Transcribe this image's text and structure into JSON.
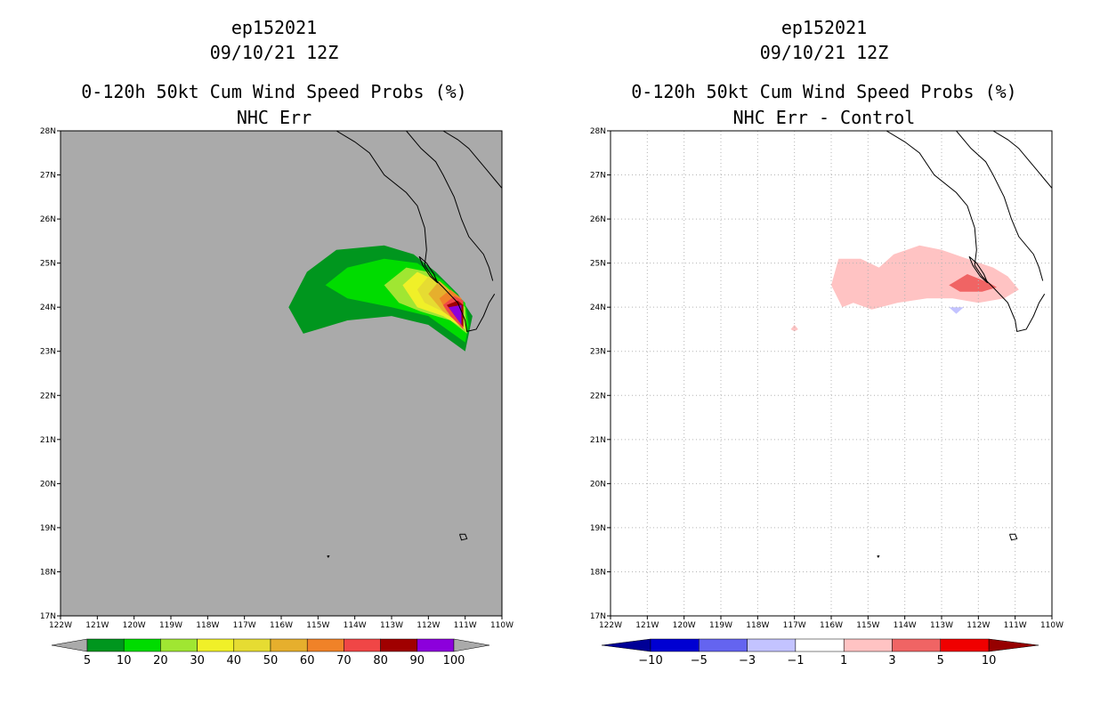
{
  "chart_data": [
    {
      "type": "heatmap",
      "storm_id": "ep152021",
      "datetime": "09/10/21 12Z",
      "title": "0-120h 50kt Cum Wind Speed Probs (%)",
      "subtitle": "NHC Err",
      "lon_range": [
        -122,
        -110
      ],
      "lat_range": [
        17,
        28
      ],
      "x_tick_labels": [
        "122W",
        "121W",
        "120W",
        "119W",
        "118W",
        "117W",
        "116W",
        "115W",
        "114W",
        "113W",
        "112W",
        "111W",
        "110W"
      ],
      "y_tick_labels": [
        "17N",
        "18N",
        "19N",
        "20N",
        "21N",
        "22N",
        "23N",
        "24N",
        "25N",
        "26N",
        "27N",
        "28N"
      ],
      "grid": false,
      "background_color": "#aaaaaa",
      "colorbar": {
        "labels": [
          "5",
          "10",
          "20",
          "30",
          "40",
          "50",
          "60",
          "70",
          "80",
          "90",
          "100"
        ],
        "colors": [
          "#00961e",
          "#00dc00",
          "#a0e632",
          "#f0f028",
          "#e6dc32",
          "#e6af2d",
          "#f08228",
          "#f04646",
          "#a00000",
          "#8c00dc"
        ],
        "end_color": "#aaaaaa"
      },
      "contours": [
        {
          "level": 5,
          "color": "#00961e",
          "points": [
            [
              -115.8,
              24.0
            ],
            [
              -115.3,
              24.8
            ],
            [
              -114.5,
              25.3
            ],
            [
              -113.2,
              25.4
            ],
            [
              -112.4,
              25.2
            ],
            [
              -111.8,
              24.8
            ],
            [
              -111.2,
              24.3
            ],
            [
              -110.8,
              23.8
            ],
            [
              -111.0,
              23.0
            ],
            [
              -112.0,
              23.6
            ],
            [
              -113.0,
              23.8
            ],
            [
              -114.2,
              23.7
            ],
            [
              -115.0,
              23.5
            ],
            [
              -115.4,
              23.4
            ],
            [
              -115.8,
              24.0
            ]
          ]
        },
        {
          "level": 10,
          "color": "#00dc00",
          "points": [
            [
              -114.8,
              24.5
            ],
            [
              -114.2,
              24.9
            ],
            [
              -113.2,
              25.1
            ],
            [
              -112.3,
              25.0
            ],
            [
              -111.6,
              24.6
            ],
            [
              -111.0,
              24.1
            ],
            [
              -110.9,
              23.6
            ],
            [
              -111.0,
              23.2
            ],
            [
              -112.0,
              23.8
            ],
            [
              -113.0,
              24.0
            ],
            [
              -114.2,
              24.2
            ],
            [
              -114.8,
              24.5
            ]
          ]
        },
        {
          "level": 20,
          "color": "#a0e632",
          "points": [
            [
              -113.2,
              24.5
            ],
            [
              -112.6,
              24.9
            ],
            [
              -112.0,
              24.8
            ],
            [
              -111.5,
              24.4
            ],
            [
              -111.0,
              24.0
            ],
            [
              -110.95,
              23.4
            ],
            [
              -111.4,
              23.7
            ],
            [
              -112.2,
              23.9
            ],
            [
              -112.8,
              24.1
            ],
            [
              -113.2,
              24.5
            ]
          ]
        },
        {
          "level": 30,
          "color": "#f0f028",
          "points": [
            [
              -112.7,
              24.5
            ],
            [
              -112.3,
              24.8
            ],
            [
              -111.8,
              24.6
            ],
            [
              -111.2,
              24.1
            ],
            [
              -111.0,
              23.5
            ],
            [
              -111.6,
              23.8
            ],
            [
              -112.3,
              24.0
            ],
            [
              -112.7,
              24.5
            ]
          ]
        },
        {
          "level": 40,
          "color": "#e6dc32",
          "points": [
            [
              -112.3,
              24.4
            ],
            [
              -112.0,
              24.7
            ],
            [
              -111.6,
              24.5
            ],
            [
              -111.1,
              24.1
            ],
            [
              -111.05,
              23.6
            ],
            [
              -111.6,
              23.9
            ],
            [
              -112.1,
              24.1
            ],
            [
              -112.3,
              24.4
            ]
          ]
        },
        {
          "level": 50,
          "color": "#e6af2d",
          "points": [
            [
              -112.0,
              24.3
            ],
            [
              -111.7,
              24.6
            ],
            [
              -111.3,
              24.3
            ],
            [
              -111.1,
              24.0
            ],
            [
              -111.1,
              23.6
            ],
            [
              -111.6,
              23.9
            ],
            [
              -112.0,
              24.3
            ]
          ]
        },
        {
          "level": 60,
          "color": "#f08228",
          "points": [
            [
              -111.7,
              24.2
            ],
            [
              -111.4,
              24.4
            ],
            [
              -111.1,
              24.2
            ],
            [
              -111.1,
              23.7
            ],
            [
              -111.5,
              23.9
            ],
            [
              -111.7,
              24.2
            ]
          ]
        },
        {
          "level": 70,
          "color": "#f04646",
          "points": [
            [
              -111.6,
              24.05
            ],
            [
              -111.3,
              24.25
            ],
            [
              -111.05,
              24.15
            ],
            [
              -111.05,
              23.5
            ],
            [
              -111.4,
              23.8
            ],
            [
              -111.6,
              24.05
            ]
          ]
        },
        {
          "level": 80,
          "color": "#a00000",
          "points": [
            [
              -111.5,
              24.05
            ],
            [
              -111.2,
              24.15
            ],
            [
              -111.05,
              24.05
            ],
            [
              -111.05,
              23.55
            ],
            [
              -111.5,
              24.05
            ]
          ]
        },
        {
          "level": 90,
          "color": "#8c00dc",
          "points": [
            [
              -111.45,
              24.0
            ],
            [
              -111.1,
              24.05
            ],
            [
              -111.1,
              23.6
            ],
            [
              -111.45,
              24.0
            ]
          ]
        }
      ]
    },
    {
      "type": "heatmap",
      "storm_id": "ep152021",
      "datetime": "09/10/21 12Z",
      "title": "0-120h 50kt Cum Wind Speed Probs (%)",
      "subtitle": "NHC Err - Control",
      "lon_range": [
        -122,
        -110
      ],
      "lat_range": [
        17,
        28
      ],
      "x_tick_labels": [
        "122W",
        "121W",
        "120W",
        "119W",
        "118W",
        "117W",
        "116W",
        "115W",
        "114W",
        "113W",
        "112W",
        "111W",
        "110W"
      ],
      "y_tick_labels": [
        "17N",
        "18N",
        "19N",
        "20N",
        "21N",
        "22N",
        "23N",
        "24N",
        "25N",
        "26N",
        "27N",
        "28N"
      ],
      "grid": true,
      "background_color": "#ffffff",
      "colorbar": {
        "labels": [
          "-10",
          "-5",
          "-3",
          "-1",
          "1",
          "3",
          "5",
          "10"
        ],
        "colors": [
          "#0000d2",
          "#6464f0",
          "#c3c3ff",
          "#ffffff",
          "#ffc3c3",
          "#f06464",
          "#f00000"
        ],
        "low_end_color": "#000096",
        "high_end_color": "#960000"
      },
      "contours": [
        {
          "level": 1,
          "color": "#ffc3c3",
          "points": [
            [
              -116.0,
              24.5
            ],
            [
              -115.8,
              25.1
            ],
            [
              -115.2,
              25.1
            ],
            [
              -114.7,
              24.9
            ],
            [
              -114.3,
              25.2
            ],
            [
              -113.6,
              25.4
            ],
            [
              -113.0,
              25.3
            ],
            [
              -112.3,
              25.1
            ],
            [
              -111.6,
              24.9
            ],
            [
              -111.2,
              24.7
            ],
            [
              -110.9,
              24.4
            ],
            [
              -111.3,
              24.2
            ],
            [
              -112.0,
              24.1
            ],
            [
              -112.7,
              24.2
            ],
            [
              -113.4,
              24.2
            ],
            [
              -114.2,
              24.1
            ],
            [
              -114.9,
              23.95
            ],
            [
              -115.4,
              24.1
            ],
            [
              -115.7,
              24.0
            ],
            [
              -116.0,
              24.5
            ]
          ]
        },
        {
          "level": 3,
          "color": "#f06464",
          "points": [
            [
              -112.8,
              24.5
            ],
            [
              -112.3,
              24.75
            ],
            [
              -111.7,
              24.55
            ],
            [
              -111.5,
              24.45
            ],
            [
              -111.9,
              24.35
            ],
            [
              -112.5,
              24.35
            ],
            [
              -112.8,
              24.5
            ]
          ]
        },
        {
          "level": 1,
          "color": "#ffc3c3",
          "points": [
            [
              -117.1,
              23.5
            ],
            [
              -117.0,
              23.6
            ],
            [
              -116.9,
              23.5
            ],
            [
              -117.0,
              23.45
            ],
            [
              -117.1,
              23.5
            ]
          ]
        },
        {
          "level": -1,
          "color": "#c3c3ff",
          "points": [
            [
              -112.8,
              24.0
            ],
            [
              -112.4,
              24.0
            ],
            [
              -112.6,
              23.85
            ],
            [
              -112.8,
              24.0
            ]
          ]
        }
      ]
    }
  ]
}
